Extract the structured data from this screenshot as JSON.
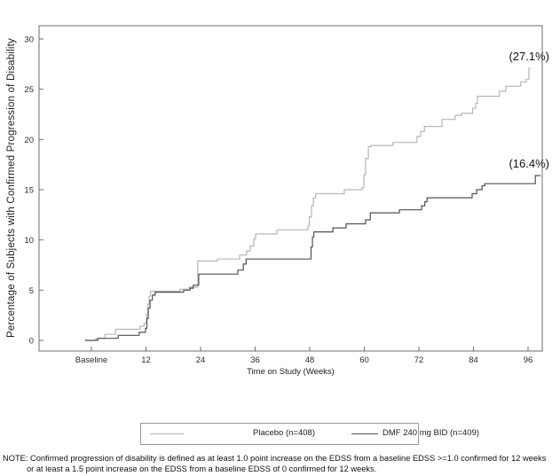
{
  "figure": {
    "note": {
      "line1": "NOTE: Confirmed progression of disability is defined as at least 1.0 point increase on the EDSS from a baseline EDSS >=1.0 confirmed for 12 weeks",
      "line2": "or at least a 1.5 point increase on the EDSS from a baseline EDSS of 0 confirmed for 12 weeks."
    }
  },
  "legend": {
    "position": "bottom",
    "entries": [
      {
        "label": "Placebo (n=408)",
        "color": "#b6b6b6"
      },
      {
        "label": "DMF 240 mg BID (n=409)",
        "color": "#525252"
      }
    ]
  },
  "chart_data": {
    "type": "line",
    "subtype": "step-after",
    "title": "",
    "xlabel": "Time on Study (Weeks)",
    "ylabel": "Percentage of Subjects with Confirmed Progression of Disability",
    "grid": false,
    "xlim_weeks": [
      -11.5,
      99.2
    ],
    "ylim": [
      -1.1,
      31.3
    ],
    "x_ticks": [
      {
        "week": 0,
        "label": "Baseline"
      },
      {
        "week": 12,
        "label": "12"
      },
      {
        "week": 24,
        "label": "24"
      },
      {
        "week": 36,
        "label": "36"
      },
      {
        "week": 48,
        "label": "48"
      },
      {
        "week": 60,
        "label": "60"
      },
      {
        "week": 72,
        "label": "72"
      },
      {
        "week": 84,
        "label": "84"
      },
      {
        "week": 96,
        "label": "96"
      }
    ],
    "y_ticks": [
      0,
      5,
      10,
      15,
      20,
      25,
      30
    ],
    "series": [
      {
        "id": "placebo",
        "name": "Placebo (n=408)",
        "color": "#b6b6b6",
        "final_label": "(27.1%)",
        "final_value_pct": 27.1,
        "points": [
          [
            -1.4,
            0
          ],
          [
            1,
            0.2
          ],
          [
            3,
            0.6
          ],
          [
            5.3,
            1.1
          ],
          [
            10.7,
            1.4
          ],
          [
            11.6,
            1.7
          ],
          [
            12.1,
            2.6
          ],
          [
            12.4,
            3.6
          ],
          [
            12.7,
            4.4
          ],
          [
            13,
            4.9
          ],
          [
            19.5,
            5.1
          ],
          [
            21.5,
            5.3
          ],
          [
            23.4,
            7.9
          ],
          [
            27.7,
            8.1
          ],
          [
            32.6,
            8.5
          ],
          [
            34.1,
            8.9
          ],
          [
            34.9,
            9.4
          ],
          [
            35.7,
            10.1
          ],
          [
            36.1,
            10.6
          ],
          [
            40.8,
            11.0
          ],
          [
            47.6,
            11.4
          ],
          [
            47.9,
            12.3
          ],
          [
            48.4,
            13.4
          ],
          [
            48.8,
            14.2
          ],
          [
            49.3,
            14.6
          ],
          [
            55.6,
            15.0
          ],
          [
            59.5,
            15.2
          ],
          [
            59.9,
            16.5
          ],
          [
            60.3,
            18.1
          ],
          [
            60.9,
            19.3
          ],
          [
            61.5,
            19.4
          ],
          [
            66.3,
            19.7
          ],
          [
            71.6,
            20.3
          ],
          [
            72.4,
            20.8
          ],
          [
            73.2,
            21.3
          ],
          [
            77.1,
            22.0
          ],
          [
            80,
            22.4
          ],
          [
            81.4,
            22.6
          ],
          [
            83.8,
            23.1
          ],
          [
            84.5,
            23.6
          ],
          [
            84.9,
            24.3
          ],
          [
            89.7,
            24.8
          ],
          [
            91.1,
            25.3
          ],
          [
            94.4,
            25.7
          ],
          [
            95.6,
            26.0
          ],
          [
            96.2,
            27.1
          ],
          [
            96.5,
            27.1
          ]
        ]
      },
      {
        "id": "dmf",
        "name": "DMF 240 mg BID (n=409)",
        "color": "#525252",
        "final_label": "(16.4%)",
        "final_value_pct": 16.4,
        "points": [
          [
            -1.4,
            0
          ],
          [
            1.4,
            0.2
          ],
          [
            5.9,
            0.5
          ],
          [
            10.5,
            0.8
          ],
          [
            11.9,
            1.2
          ],
          [
            12.2,
            2.2
          ],
          [
            12.5,
            3.2
          ],
          [
            12.9,
            4.0
          ],
          [
            13.4,
            4.5
          ],
          [
            14,
            4.8
          ],
          [
            20.3,
            5.0
          ],
          [
            21.7,
            5.2
          ],
          [
            22.4,
            5.5
          ],
          [
            23.6,
            6.6
          ],
          [
            32.2,
            7.0
          ],
          [
            33.4,
            7.6
          ],
          [
            34,
            8.1
          ],
          [
            48.3,
            9.3
          ],
          [
            48.6,
            10.3
          ],
          [
            48.9,
            10.8
          ],
          [
            53.1,
            11.2
          ],
          [
            56,
            11.6
          ],
          [
            60.3,
            12.0
          ],
          [
            61.3,
            12.7
          ],
          [
            67.7,
            13.0
          ],
          [
            72.6,
            13.4
          ],
          [
            73.3,
            13.8
          ],
          [
            73.8,
            14.2
          ],
          [
            83.7,
            14.6
          ],
          [
            84.7,
            15.0
          ],
          [
            85.9,
            15.4
          ],
          [
            86.5,
            15.6
          ],
          [
            97.6,
            16.4
          ],
          [
            98.8,
            16.4
          ]
        ]
      }
    ]
  }
}
